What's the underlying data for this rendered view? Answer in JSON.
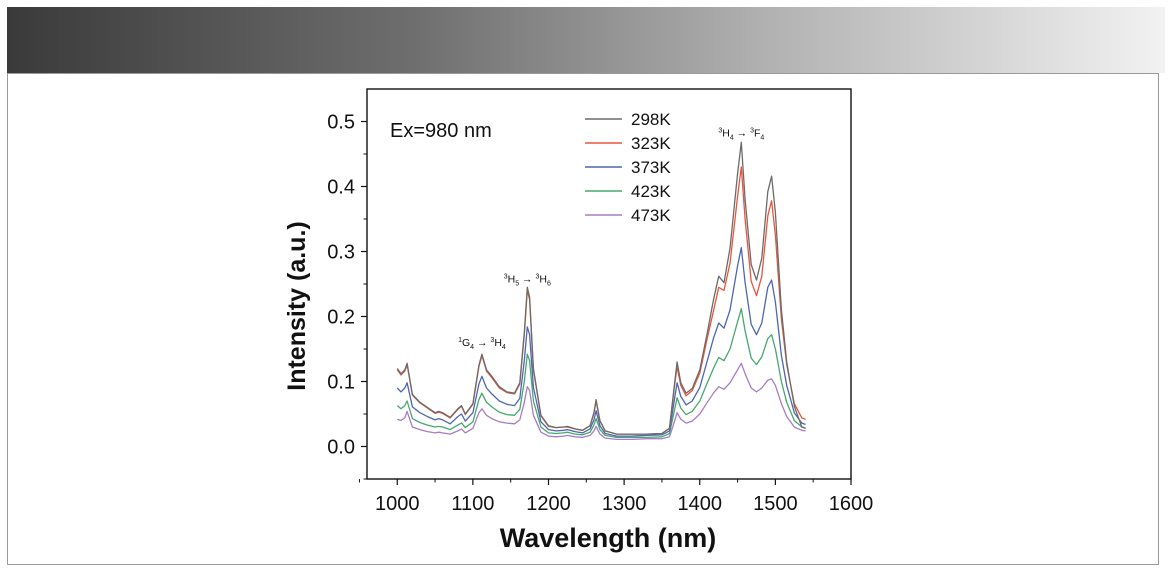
{
  "chart_data": {
    "type": "line",
    "xlabel": "Wavelength (nm)",
    "ylabel": "Intensity (a.u.)",
    "xlim": [
      960,
      1600
    ],
    "ylim": [
      -0.05,
      0.55
    ],
    "x_ticks": [
      1000,
      1100,
      1200,
      1300,
      1400,
      1500,
      1600
    ],
    "y_ticks": [
      0.0,
      0.1,
      0.2,
      0.3,
      0.4,
      0.5
    ],
    "x_tick_labels": [
      "1000",
      "1100",
      "1200",
      "1300",
      "1400",
      "1500",
      "1600"
    ],
    "y_tick_labels": [
      "0.0",
      "0.1",
      "0.2",
      "0.3",
      "0.4",
      "0.5"
    ],
    "inset_label": "Ex=980 nm",
    "legend_position": "top-center",
    "x": [
      1000,
      1005,
      1010,
      1013,
      1020,
      1030,
      1040,
      1050,
      1055,
      1060,
      1070,
      1080,
      1085,
      1090,
      1100,
      1108,
      1112,
      1118,
      1125,
      1135,
      1145,
      1155,
      1162,
      1168,
      1172,
      1175,
      1180,
      1190,
      1200,
      1210,
      1220,
      1225,
      1235,
      1245,
      1255,
      1260,
      1263,
      1268,
      1275,
      1290,
      1310,
      1330,
      1350,
      1360,
      1367,
      1370,
      1375,
      1382,
      1390,
      1400,
      1410,
      1418,
      1425,
      1432,
      1440,
      1450,
      1455,
      1460,
      1468,
      1475,
      1482,
      1490,
      1495,
      1500,
      1508,
      1515,
      1525,
      1535,
      1540
    ],
    "series": [
      {
        "name": "298K",
        "color": "#6b6b6b",
        "values": [
          0.12,
          0.112,
          0.118,
          0.128,
          0.08,
          0.068,
          0.06,
          0.052,
          0.054,
          0.052,
          0.045,
          0.058,
          0.063,
          0.05,
          0.066,
          0.125,
          0.142,
          0.118,
          0.108,
          0.092,
          0.084,
          0.082,
          0.098,
          0.175,
          0.245,
          0.23,
          0.12,
          0.048,
          0.032,
          0.029,
          0.03,
          0.031,
          0.027,
          0.025,
          0.032,
          0.052,
          0.072,
          0.04,
          0.024,
          0.019,
          0.019,
          0.019,
          0.02,
          0.028,
          0.1,
          0.13,
          0.098,
          0.082,
          0.089,
          0.118,
          0.175,
          0.225,
          0.262,
          0.252,
          0.305,
          0.42,
          0.468,
          0.38,
          0.28,
          0.256,
          0.29,
          0.392,
          0.416,
          0.36,
          0.21,
          0.13,
          0.062,
          0.03,
          0.028
        ]
      },
      {
        "name": "323K",
        "color": "#e8553d",
        "values": [
          0.118,
          0.11,
          0.116,
          0.126,
          0.079,
          0.067,
          0.059,
          0.051,
          0.053,
          0.051,
          0.044,
          0.057,
          0.062,
          0.049,
          0.065,
          0.123,
          0.14,
          0.116,
          0.106,
          0.09,
          0.083,
          0.081,
          0.096,
          0.172,
          0.24,
          0.226,
          0.118,
          0.047,
          0.031,
          0.029,
          0.03,
          0.03,
          0.027,
          0.025,
          0.032,
          0.051,
          0.07,
          0.039,
          0.024,
          0.019,
          0.019,
          0.019,
          0.02,
          0.028,
          0.097,
          0.122,
          0.094,
          0.078,
          0.086,
          0.113,
          0.167,
          0.208,
          0.245,
          0.24,
          0.282,
          0.385,
          0.43,
          0.35,
          0.254,
          0.232,
          0.262,
          0.355,
          0.378,
          0.325,
          0.196,
          0.126,
          0.066,
          0.044,
          0.042
        ]
      },
      {
        "name": "373K",
        "color": "#4b67b3",
        "values": [
          0.09,
          0.084,
          0.09,
          0.098,
          0.061,
          0.052,
          0.046,
          0.041,
          0.043,
          0.041,
          0.035,
          0.046,
          0.05,
          0.039,
          0.052,
          0.096,
          0.108,
          0.09,
          0.081,
          0.07,
          0.065,
          0.063,
          0.074,
          0.132,
          0.184,
          0.172,
          0.091,
          0.038,
          0.026,
          0.024,
          0.025,
          0.026,
          0.023,
          0.021,
          0.027,
          0.041,
          0.055,
          0.032,
          0.02,
          0.016,
          0.016,
          0.017,
          0.018,
          0.024,
          0.076,
          0.098,
          0.077,
          0.064,
          0.07,
          0.091,
          0.132,
          0.166,
          0.19,
          0.182,
          0.21,
          0.278,
          0.306,
          0.252,
          0.188,
          0.172,
          0.19,
          0.245,
          0.256,
          0.222,
          0.14,
          0.094,
          0.052,
          0.036,
          0.034
        ]
      },
      {
        "name": "423K",
        "color": "#46a86e",
        "values": [
          0.063,
          0.058,
          0.063,
          0.07,
          0.043,
          0.037,
          0.033,
          0.03,
          0.031,
          0.03,
          0.026,
          0.033,
          0.036,
          0.029,
          0.038,
          0.072,
          0.082,
          0.068,
          0.061,
          0.053,
          0.049,
          0.048,
          0.057,
          0.1,
          0.142,
          0.132,
          0.07,
          0.03,
          0.021,
          0.02,
          0.021,
          0.022,
          0.019,
          0.018,
          0.022,
          0.033,
          0.043,
          0.026,
          0.017,
          0.014,
          0.014,
          0.014,
          0.015,
          0.02,
          0.058,
          0.075,
          0.059,
          0.049,
          0.054,
          0.07,
          0.098,
          0.12,
          0.137,
          0.132,
          0.15,
          0.192,
          0.212,
          0.178,
          0.136,
          0.126,
          0.138,
          0.166,
          0.172,
          0.15,
          0.1,
          0.068,
          0.04,
          0.03,
          0.028
        ]
      },
      {
        "name": "473K",
        "color": "#a77dc4",
        "values": [
          0.042,
          0.04,
          0.044,
          0.054,
          0.03,
          0.026,
          0.023,
          0.021,
          0.022,
          0.021,
          0.019,
          0.024,
          0.027,
          0.021,
          0.028,
          0.052,
          0.058,
          0.048,
          0.043,
          0.038,
          0.036,
          0.035,
          0.041,
          0.068,
          0.092,
          0.086,
          0.048,
          0.022,
          0.016,
          0.015,
          0.016,
          0.017,
          0.015,
          0.014,
          0.017,
          0.024,
          0.031,
          0.019,
          0.013,
          0.011,
          0.011,
          0.012,
          0.012,
          0.015,
          0.04,
          0.052,
          0.042,
          0.036,
          0.039,
          0.05,
          0.068,
          0.082,
          0.092,
          0.088,
          0.098,
          0.118,
          0.128,
          0.112,
          0.09,
          0.084,
          0.09,
          0.102,
          0.104,
          0.094,
          0.066,
          0.046,
          0.03,
          0.025,
          0.024
        ]
      }
    ],
    "annotations": [
      {
        "id": "g4",
        "lower": "1",
        "a": "G",
        "aSub": "4",
        "arrow": " → ",
        "upper": "3",
        "b": "H",
        "bSub": "4",
        "x": 1112,
        "y": 0.155
      },
      {
        "id": "h5",
        "lower": "3",
        "a": "H",
        "aSub": "5",
        "arrow": " → ",
        "upper": "3",
        "b": "H",
        "bSub": "6",
        "x": 1172,
        "y": 0.252
      },
      {
        "id": "h4",
        "lower": "3",
        "a": "H",
        "aSub": "4",
        "arrow": " → ",
        "upper": "3",
        "b": "F",
        "bSub": "4",
        "x": 1455,
        "y": 0.477
      }
    ]
  }
}
